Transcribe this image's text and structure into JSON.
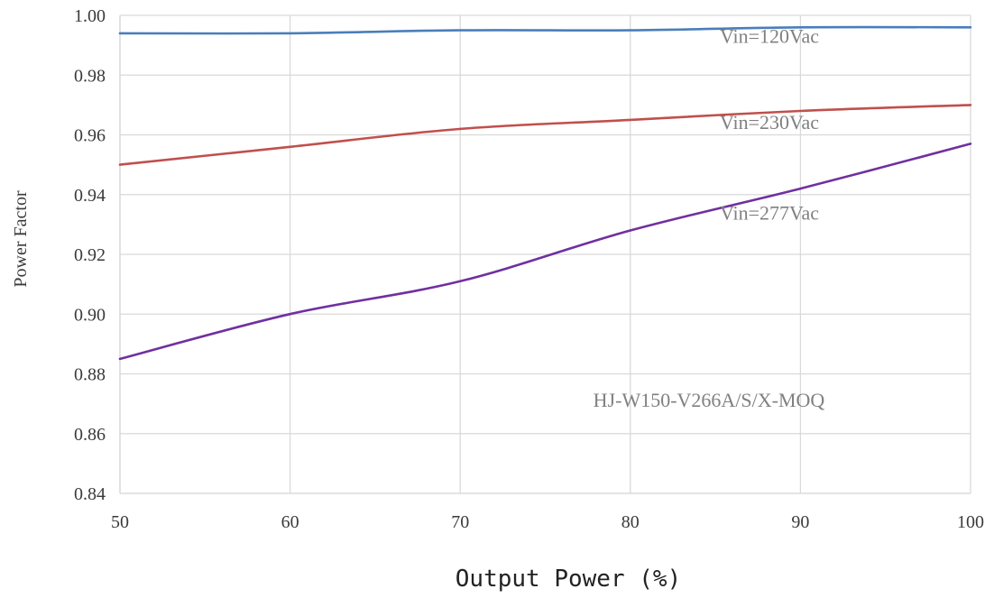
{
  "chart_data": {
    "type": "line",
    "title": "",
    "xlabel": "Output Power (%)",
    "ylabel": "Power Factor",
    "xlim": [
      50,
      100
    ],
    "ylim": [
      0.84,
      1.0
    ],
    "x_ticks": [
      "50",
      "60",
      "70",
      "80",
      "90",
      "100"
    ],
    "y_ticks": [
      "0.84",
      "0.86",
      "0.88",
      "0.90",
      "0.92",
      "0.94",
      "0.96",
      "0.98",
      "1.00"
    ],
    "grid": true,
    "x": [
      50,
      60,
      70,
      80,
      90,
      100
    ],
    "series": [
      {
        "name": "Vin=120Vac",
        "color": "#4a7ebb",
        "values": [
          0.994,
          0.994,
          0.995,
          0.995,
          0.996,
          0.996
        ]
      },
      {
        "name": "Vin=230Vac",
        "color": "#c0504d",
        "values": [
          0.95,
          0.956,
          0.962,
          0.965,
          0.968,
          0.97
        ]
      },
      {
        "name": "Vin=277Vac",
        "color": "#7030a0",
        "values": [
          0.885,
          0.9,
          0.911,
          0.928,
          0.942,
          0.957
        ]
      }
    ],
    "annotations": [
      {
        "text": "HJ-W150-V266A/S/X-MOQ"
      }
    ]
  }
}
